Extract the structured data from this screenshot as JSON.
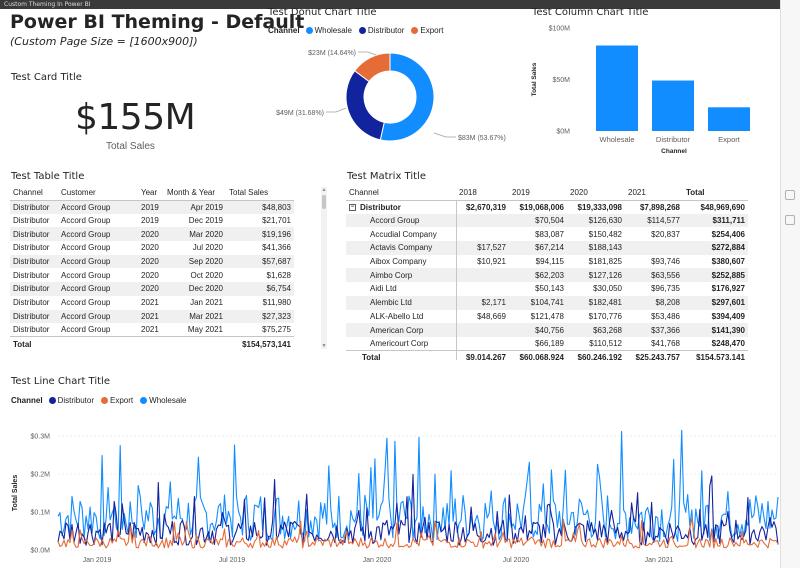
{
  "window": {
    "title": "Custom Theming In Power BI"
  },
  "page": {
    "title": "Power BI Theming - Default",
    "subtitle": "(Custom Page Size = [1600x900])"
  },
  "colors": {
    "wholesale": "#118DFF",
    "distributor": "#12239E",
    "export": "#E66C37"
  },
  "card": {
    "title": "Test Card Title",
    "value": "$155M",
    "label": "Total Sales"
  },
  "donut": {
    "title": "Test Donut Chart Title",
    "legend_title": "Channel",
    "legend": [
      "Wholesale",
      "Distributor",
      "Export"
    ],
    "labels": [
      "$83M (53.67%)",
      "$49M (31.68%)",
      "$23M (14.64%)"
    ]
  },
  "column": {
    "title": "Test Column Chart Title",
    "ylabel": "Total Sales",
    "xlabel": "Channel",
    "ticks": [
      "$100M",
      "$50M",
      "$0M"
    ]
  },
  "line": {
    "title": "Test Line Chart Title",
    "legend_title": "Channel",
    "legend": [
      "Distributor",
      "Export",
      "Wholesale"
    ],
    "ylabel": "Total Sales",
    "yticks": [
      "$0.3M",
      "$0.2M",
      "$0.1M",
      "$0.0M"
    ],
    "xticks": [
      "Jan 2019",
      "Jul 2019",
      "Jan 2020",
      "Jul 2020",
      "Jan 2021"
    ]
  },
  "table": {
    "title": "Test Table Title",
    "columns": [
      "Channel",
      "Customer",
      "Year",
      "Month & Year",
      "Total Sales"
    ],
    "rows": [
      [
        "Distributor",
        "Accord Group",
        "2019",
        "Apr 2019",
        "$48,803"
      ],
      [
        "Distributor",
        "Accord Group",
        "2019",
        "Dec 2019",
        "$21,701"
      ],
      [
        "Distributor",
        "Accord Group",
        "2020",
        "Mar 2020",
        "$19,196"
      ],
      [
        "Distributor",
        "Accord Group",
        "2020",
        "Jul 2020",
        "$41,366"
      ],
      [
        "Distributor",
        "Accord Group",
        "2020",
        "Sep 2020",
        "$57,687"
      ],
      [
        "Distributor",
        "Accord Group",
        "2020",
        "Oct 2020",
        "$1,628"
      ],
      [
        "Distributor",
        "Accord Group",
        "2020",
        "Dec 2020",
        "$6,754"
      ],
      [
        "Distributor",
        "Accord Group",
        "2021",
        "Jan 2021",
        "$11,980"
      ],
      [
        "Distributor",
        "Accord Group",
        "2021",
        "Mar 2021",
        "$27,323"
      ],
      [
        "Distributor",
        "Accord Group",
        "2021",
        "May 2021",
        "$75,275"
      ]
    ],
    "total_label": "Total",
    "total_value": "$154,573,141"
  },
  "matrix": {
    "title": "Test Matrix Title",
    "columns": [
      "Channel",
      "2018",
      "2019",
      "2020",
      "2021",
      "Total"
    ],
    "group": [
      "Distributor",
      "$2,670,319",
      "$19,068,006",
      "$19,333,098",
      "$7,898,268",
      "$48,969,690"
    ],
    "group_expander": "−",
    "rows": [
      [
        "Accord Group",
        "",
        "$70,504",
        "$126,630",
        "$114,577",
        "$311,711"
      ],
      [
        "Accudial Company",
        "",
        "$83,087",
        "$150,482",
        "$20,837",
        "$254,406"
      ],
      [
        "Actavis Company",
        "$17,527",
        "$67,214",
        "$188,143",
        "",
        "$272,884"
      ],
      [
        "Aibox Company",
        "$10,921",
        "$94,115",
        "$181,825",
        "$93,746",
        "$380,607"
      ],
      [
        "Aimbo Corp",
        "",
        "$62,203",
        "$127,126",
        "$63,556",
        "$252,885"
      ],
      [
        "Aidi Ltd",
        "",
        "$50,143",
        "$30,050",
        "$96,735",
        "$176,927"
      ],
      [
        "Alembic Ltd",
        "$2,171",
        "$104,741",
        "$182,481",
        "$8,208",
        "$297,601"
      ],
      [
        "ALK-Abello Ltd",
        "$48,669",
        "$121,478",
        "$170,776",
        "$53,486",
        "$394,409"
      ],
      [
        "American Corp",
        "",
        "$40,756",
        "$63,268",
        "$37,366",
        "$141,390"
      ],
      [
        "Americourt Corp",
        "",
        "$66,189",
        "$110,512",
        "$41,768",
        "$248,470"
      ]
    ],
    "total": [
      "Total",
      "$9,014,267",
      "$60,068,924",
      "$60,246,192",
      "$25,243,757",
      "$154,573,141"
    ]
  },
  "chart_data": [
    {
      "type": "pie",
      "title": "Test Donut Chart Title",
      "categories": [
        "Wholesale",
        "Distributor",
        "Export"
      ],
      "values": [
        83,
        49,
        23
      ],
      "percent": [
        53.67,
        31.68,
        14.64
      ],
      "unit": "$M",
      "colors": [
        "#118DFF",
        "#12239E",
        "#E66C37"
      ]
    },
    {
      "type": "bar",
      "title": "Test Column Chart Title",
      "categories": [
        "Wholesale",
        "Distributor",
        "Export"
      ],
      "values": [
        83,
        49,
        23
      ],
      "unit": "$M",
      "xlabel": "Channel",
      "ylabel": "Total Sales",
      "ylim": [
        0,
        100
      ],
      "color": "#118DFF"
    },
    {
      "type": "line",
      "title": "Test Line Chart Title",
      "xlabel": "",
      "ylabel": "Total Sales",
      "ylim": [
        0,
        0.3
      ],
      "unit": "$M",
      "x_range": [
        "Oct 2018",
        "Jul 2021"
      ],
      "series": [
        {
          "name": "Wholesale",
          "color": "#118DFF",
          "typical": 0.09,
          "peak": 0.33
        },
        {
          "name": "Distributor",
          "color": "#12239E",
          "typical": 0.05,
          "peak": 0.2
        },
        {
          "name": "Export",
          "color": "#E66C37",
          "typical": 0.02,
          "peak": 0.09
        }
      ]
    }
  ]
}
